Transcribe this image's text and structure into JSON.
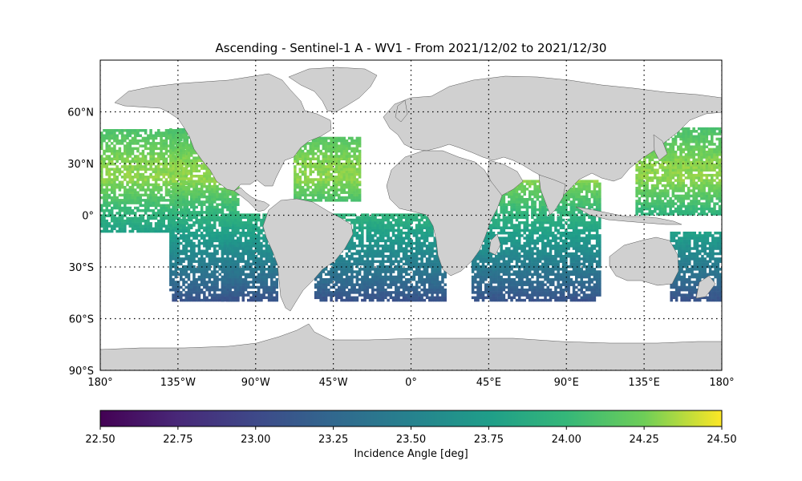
{
  "chart_data": {
    "type": "heatmap",
    "title": "Ascending - Sentinel-1 A - WV1 - From 2021/12/02 to 2021/12/30",
    "map": {
      "projection": "plate-carree",
      "lon_range": [
        -180,
        180
      ],
      "lat_range": [
        -90,
        90
      ],
      "land_color": "#d0d0d0",
      "gridlines": "dotted",
      "lon_ticks": [
        -180,
        -135,
        -90,
        -45,
        0,
        45,
        90,
        135,
        180
      ],
      "lon_tick_labels": [
        "180°",
        "135°W",
        "90°W",
        "45°W",
        "0°",
        "45°E",
        "90°E",
        "135°E",
        "180°"
      ],
      "lat_ticks": [
        60,
        30,
        0,
        -30,
        -60,
        -90
      ],
      "lat_tick_labels": [
        "60°N",
        "30°N",
        "0°",
        "30°S",
        "60°S",
        "90°S"
      ]
    },
    "colorbar": {
      "colormap": "viridis",
      "range": [
        22.5,
        24.5
      ],
      "ticks": [
        22.5,
        22.75,
        23.0,
        23.25,
        23.5,
        23.75,
        24.0,
        24.25,
        24.5
      ],
      "tick_labels": [
        "22.50",
        "22.75",
        "23.00",
        "23.25",
        "23.50",
        "23.75",
        "24.00",
        "24.25",
        "24.50"
      ],
      "label": "Incidence Angle [deg]"
    },
    "data_extent": {
      "lat_range": [
        -50,
        50
      ],
      "trend": "incidence angle ≈ 24.3 deg near 20°N decreasing to ≈ 23.2 deg near 50°S"
    },
    "swaths": [
      {
        "region": "North Pacific",
        "lon_range": [
          -180,
          -130
        ],
        "lat_range": [
          -10,
          50
        ]
      },
      {
        "region": "East Pacific",
        "lon_range": [
          -140,
          -100
        ],
        "lat_range": [
          -50,
          50
        ]
      },
      {
        "region": "Southeast Pacific",
        "lon_range": [
          -110,
          -78
        ],
        "lat_range": [
          -50,
          0
        ]
      },
      {
        "region": "North Atlantic",
        "lon_range": [
          -68,
          -30
        ],
        "lat_range": [
          8,
          45
        ]
      },
      {
        "region": "South Atlantic",
        "lon_range": [
          -56,
          20
        ],
        "lat_range": [
          -50,
          0
        ]
      },
      {
        "region": "Indian Ocean",
        "lon_range": [
          35,
          110
        ],
        "lat_range": [
          -50,
          20
        ]
      },
      {
        "region": "West Pacific",
        "lon_range": [
          130,
          180
        ],
        "lat_range": [
          0,
          50
        ]
      },
      {
        "region": "Southwest Pacific",
        "lon_range": [
          150,
          180
        ],
        "lat_range": [
          -50,
          -10
        ]
      }
    ]
  }
}
